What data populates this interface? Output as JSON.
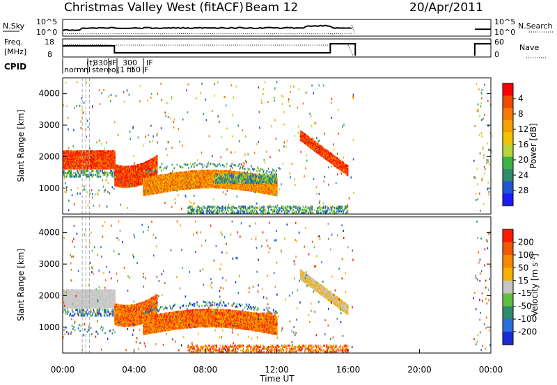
{
  "header": {
    "title": "Christmas Valley West (fitACF)",
    "beam": "Beam 12",
    "date": "20/Apr/2011"
  },
  "sky_panel": {
    "left_label": "N.Sky",
    "right_label": "N.Search",
    "left_ticks": [
      "10^5",
      "10^0"
    ],
    "right_ticks": [
      "10^5",
      "10^0"
    ]
  },
  "freq_panel": {
    "left_label_1": "Freq.",
    "left_label_2": "[MHz]",
    "right_label": "Nave",
    "left_ticks": [
      "18",
      "8"
    ],
    "right_ticks": [
      "60",
      "0"
    ]
  },
  "cpid": {
    "label": "CPID",
    "text_1": "norm",
    "text_2": "n",
    "text_3": "l",
    "text_4": "(t)",
    "text_5": "330s",
    "text_6": "300",
    "text_7": "IF",
    "text_8": "IF",
    "text_9": "stereo",
    "text_10": "(1",
    "text_11": "fit",
    "text_12": "50",
    "text_13": "IF"
  },
  "chart_data": [
    {
      "type": "heatmap",
      "name": "power",
      "ylabel": "Slant Range [km]",
      "xlabel": "",
      "xlim": [
        0,
        24
      ],
      "ylim": [
        180,
        4500
      ],
      "yticks": [
        "1000",
        "2000",
        "3000",
        "4000"
      ],
      "colorbar": {
        "label": "Power [dB]",
        "ticks": [
          "4",
          "8",
          "12",
          "16",
          "20",
          "24",
          "28"
        ],
        "colors": [
          "#1a1aff",
          "#2255d6",
          "#2f8a6e",
          "#3fb24a",
          "#b8d43a",
          "#f0c400",
          "#f7a000",
          "#f57a00",
          "#ef4a00",
          "#ff0000"
        ]
      }
    },
    {
      "type": "heatmap",
      "name": "velocity",
      "ylabel": "Slant Range [km]",
      "xlabel": "Time UT",
      "xlim": [
        0,
        24
      ],
      "ylim": [
        180,
        4500
      ],
      "yticks": [
        "1000",
        "2000",
        "3000",
        "4000"
      ],
      "xticks": [
        "00:00",
        "04:00",
        "08:00",
        "12:00",
        "16:00",
        "20:00",
        "00:00"
      ],
      "colorbar": {
        "label": "Velocity [m s^-1]",
        "ticks": [
          "200",
          "100",
          "50",
          "15",
          "-15",
          "-50",
          "-100",
          "-200"
        ],
        "colors": [
          "#1a2bd6",
          "#2a6fd9",
          "#2f8a6e",
          "#5fc040",
          "#c6c6c6",
          "#f7b200",
          "#f58a00",
          "#ef5a00",
          "#ff1a00"
        ]
      }
    }
  ]
}
